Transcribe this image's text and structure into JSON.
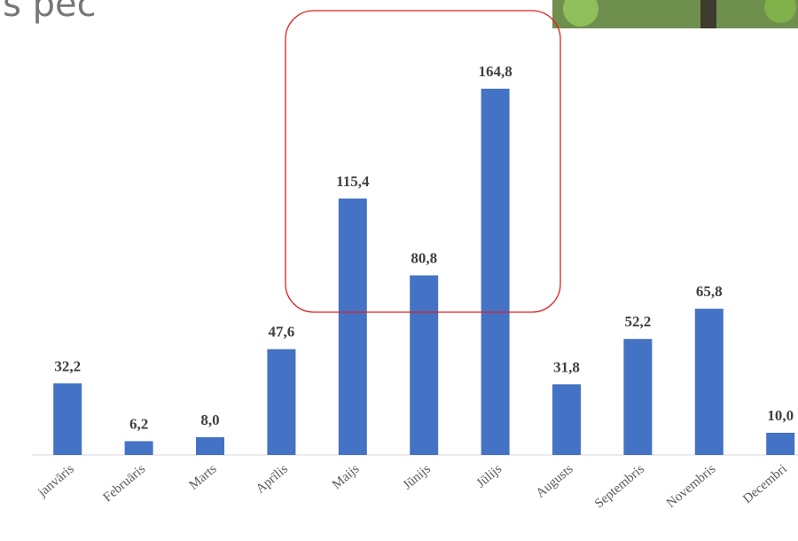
{
  "chart_data": {
    "type": "bar",
    "title": "is pēc",
    "categories": [
      "janvāris",
      "Februāris",
      "Marts",
      "Aprīlis",
      "Maijs",
      "Jūnijs",
      "Jūlijs",
      "Augusts",
      "Septembris",
      "Novembris",
      "Decembri"
    ],
    "values": [
      32.2,
      6.2,
      8.0,
      47.6,
      115.4,
      80.8,
      164.8,
      31.8,
      52.2,
      65.8,
      10.0
    ],
    "value_labels": [
      "32,2",
      "6,2",
      "8,0",
      "47,6",
      "115,4",
      "80,8",
      "164,8",
      "31,8",
      "52,2",
      "65,8",
      "10,0"
    ],
    "color": "#4472c4",
    "ylim": [
      0,
      190
    ]
  }
}
